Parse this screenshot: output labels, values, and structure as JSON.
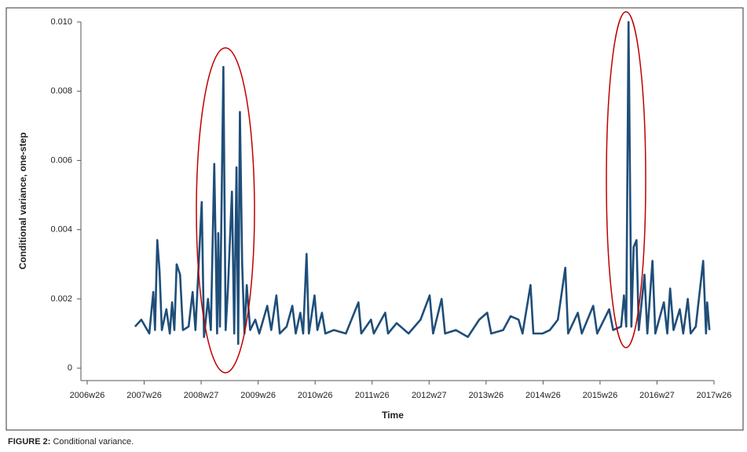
{
  "chart_data": {
    "type": "line",
    "x_label": "Time",
    "y_label": "Conditional variance, one-step",
    "caption_label": "FIGURE 2:",
    "caption_text": "Conditional variance.",
    "xlim": [
      2006.5,
      2017.5
    ],
    "xticks": [
      {
        "value": 2006.5,
        "label": "2006w26"
      },
      {
        "value": 2007.5,
        "label": "2007w26"
      },
      {
        "value": 2008.5,
        "label": "2008w27"
      },
      {
        "value": 2009.5,
        "label": "2009w26"
      },
      {
        "value": 2010.5,
        "label": "2010w26"
      },
      {
        "value": 2011.5,
        "label": "2011w26"
      },
      {
        "value": 2012.5,
        "label": "2012w27"
      },
      {
        "value": 2013.5,
        "label": "2013w26"
      },
      {
        "value": 2014.5,
        "label": "2014w26"
      },
      {
        "value": 2015.5,
        "label": "2015w26"
      },
      {
        "value": 2016.5,
        "label": "2016w27"
      },
      {
        "value": 2017.5,
        "label": "2017w26"
      }
    ],
    "ylim": [
      -0.00036,
      0.01
    ],
    "yticks": [
      0,
      0.002,
      0.004,
      0.006,
      0.008,
      {
        "value": 0.01,
        "label": "0.010"
      }
    ],
    "color": "#1f4e79",
    "x": [
      2007.34,
      2007.45,
      2007.59,
      2007.66,
      2007.69,
      2007.73,
      2007.77,
      2007.81,
      2007.89,
      2007.95,
      2007.99,
      2008.03,
      2008.07,
      2008.13,
      2008.18,
      2008.28,
      2008.35,
      2008.4,
      2008.51,
      2008.55,
      2008.62,
      2008.67,
      2008.73,
      2008.78,
      2008.8,
      2008.83,
      2008.89,
      2008.93,
      2008.97,
      2009.04,
      2009.08,
      2009.12,
      2009.15,
      2009.18,
      2009.22,
      2009.26,
      2009.3,
      2009.36,
      2009.45,
      2009.52,
      2009.66,
      2009.73,
      2009.82,
      2009.88,
      2010.0,
      2010.1,
      2010.16,
      2010.24,
      2010.29,
      2010.35,
      2010.39,
      2010.49,
      2010.54,
      2010.62,
      2010.68,
      2010.83,
      2011.04,
      2011.26,
      2011.31,
      2011.48,
      2011.53,
      2011.73,
      2011.78,
      2011.93,
      2012.14,
      2012.35,
      2012.51,
      2012.57,
      2012.72,
      2012.78,
      2012.97,
      2013.18,
      2013.38,
      2013.52,
      2013.59,
      2013.8,
      2013.93,
      2014.07,
      2014.14,
      2014.28,
      2014.33,
      2014.49,
      2014.62,
      2014.76,
      2014.89,
      2014.94,
      2015.11,
      2015.18,
      2015.38,
      2015.45,
      2015.66,
      2015.73,
      2015.87,
      2015.92,
      2015.96,
      2016.0,
      2016.05,
      2016.09,
      2016.14,
      2016.18,
      2016.28,
      2016.33,
      2016.42,
      2016.47,
      2016.62,
      2016.68,
      2016.73,
      2016.79,
      2016.9,
      2016.96,
      2017.04,
      2017.09,
      2017.18,
      2017.31,
      2017.36,
      2017.38,
      2017.42
    ],
    "values": [
      0.0012,
      0.0014,
      0.001,
      0.0022,
      0.0011,
      0.0037,
      0.0028,
      0.0011,
      0.0017,
      0.001,
      0.0019,
      0.0011,
      0.003,
      0.0027,
      0.0011,
      0.0012,
      0.0022,
      0.0011,
      0.0048,
      0.0009,
      0.002,
      0.0011,
      0.0059,
      0.001,
      0.0039,
      0.0012,
      0.0087,
      0.0011,
      0.0023,
      0.0051,
      0.001,
      0.0058,
      0.0007,
      0.0074,
      0.003,
      0.001,
      0.0024,
      0.0011,
      0.0014,
      0.001,
      0.0018,
      0.0011,
      0.0021,
      0.001,
      0.0012,
      0.0018,
      0.001,
      0.0016,
      0.001,
      0.0033,
      0.001,
      0.0021,
      0.0011,
      0.0016,
      0.001,
      0.0011,
      0.001,
      0.0019,
      0.001,
      0.0014,
      0.001,
      0.0016,
      0.001,
      0.0013,
      0.001,
      0.0014,
      0.0021,
      0.001,
      0.002,
      0.001,
      0.0011,
      0.0009,
      0.0014,
      0.0016,
      0.001,
      0.0011,
      0.0015,
      0.0014,
      0.001,
      0.0024,
      0.001,
      0.001,
      0.0011,
      0.0014,
      0.0029,
      0.001,
      0.0016,
      0.001,
      0.0018,
      0.001,
      0.0017,
      0.0011,
      0.0012,
      0.0021,
      0.0012,
      0.01,
      0.0012,
      0.0035,
      0.0037,
      0.0011,
      0.0027,
      0.001,
      0.0031,
      0.001,
      0.0019,
      0.001,
      0.0023,
      0.0011,
      0.0017,
      0.001,
      0.002,
      0.001,
      0.0012,
      0.0031,
      0.001,
      0.0019,
      0.0011
    ]
  }
}
